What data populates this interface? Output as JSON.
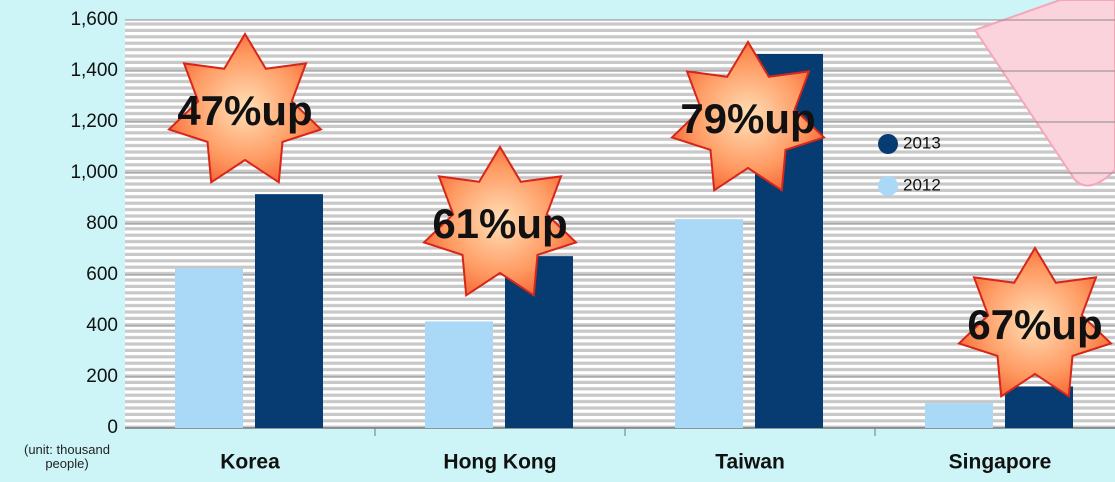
{
  "chart_data": {
    "type": "bar",
    "categories": [
      "Korea",
      "Hong Kong",
      "Taiwan",
      "Singapore"
    ],
    "series": [
      {
        "name": "2012",
        "color": "#aad8f7",
        "values": [
          627,
          418,
          819,
          97
        ]
      },
      {
        "name": "2013",
        "color": "#063c72",
        "values": [
          917,
          674,
          1467,
          163
        ]
      }
    ],
    "ylim": [
      0,
      1600
    ],
    "yticks": [
      0,
      200,
      400,
      600,
      800,
      {
        "value": 1000,
        "label": "1,000"
      },
      {
        "value": 1200,
        "label": "1,200"
      },
      {
        "value": 1400,
        "label": "1,400"
      },
      {
        "value": 1600,
        "label": "1,600"
      }
    ],
    "grid": true,
    "annotations": [
      "47%up",
      "61%up",
      "79%up",
      "67%up"
    ],
    "unit_label": "(unit: thousand people)"
  }
}
